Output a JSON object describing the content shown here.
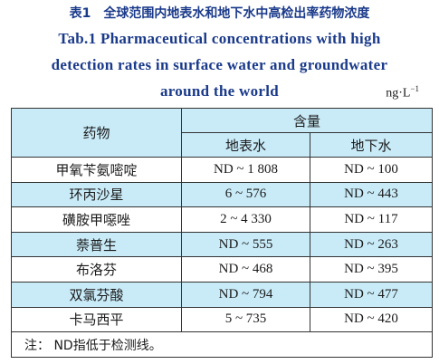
{
  "caption": {
    "zh": "表1　全球范围内地表水和地下水中高检出率药物浓度",
    "en_lines": [
      "Tab.1   Pharmaceutical concentrations with high",
      "detection rates in surface water and groundwater",
      "around the world"
    ],
    "unit_base": "ng·L",
    "unit_exp": "−1"
  },
  "table": {
    "header": {
      "drug": "药物",
      "content": "含量",
      "surface": "地表水",
      "ground": "地下水"
    },
    "rows": [
      {
        "drug": "甲氧苄氨嘧啶",
        "surface": "ND ~ 1 808",
        "ground": "ND ~ 100"
      },
      {
        "drug": "环丙沙星",
        "surface": "6 ~ 576",
        "ground": "ND ~ 443"
      },
      {
        "drug": "磺胺甲噁唑",
        "surface": "2 ~ 4 330",
        "ground": "ND ~ 117"
      },
      {
        "drug": "萘普生",
        "surface": "ND ~ 555",
        "ground": "ND ~ 263"
      },
      {
        "drug": "布洛芬",
        "surface": "ND ~ 468",
        "ground": "ND ~ 395"
      },
      {
        "drug": "双氯芬酸",
        "surface": "ND ~ 794",
        "ground": "ND ~ 477"
      },
      {
        "drug": "卡马西平",
        "surface": "5 ~ 735",
        "ground": "ND ~ 420"
      }
    ],
    "note": "注：  ND指低于检测线。"
  }
}
